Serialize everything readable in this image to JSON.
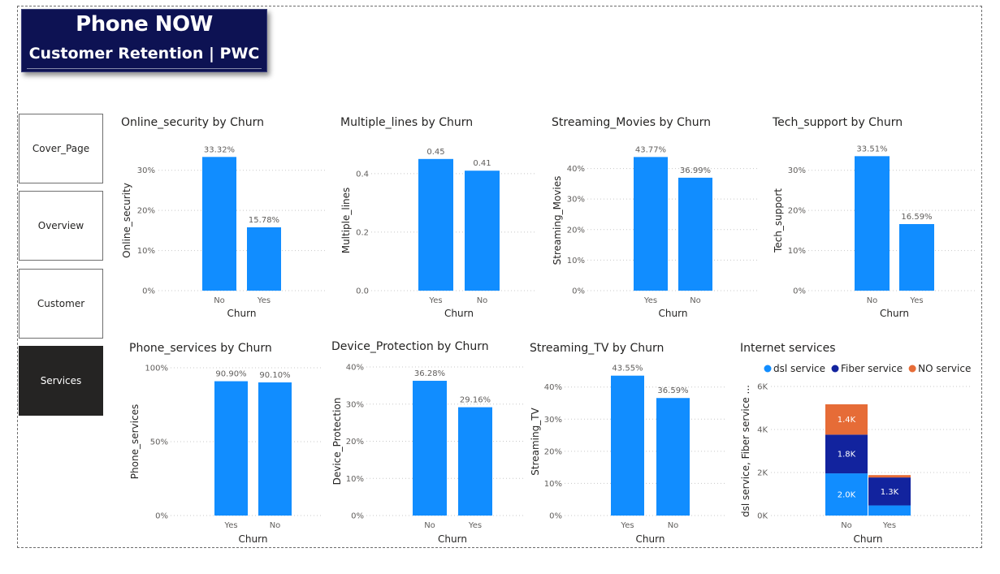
{
  "header": {
    "title": "Phone NOW",
    "subtitle": "Customer Retention | PWC"
  },
  "nav": [
    {
      "label": "Cover_Page",
      "active": false
    },
    {
      "label": "Overview",
      "active": false
    },
    {
      "label": "Customer",
      "active": false
    },
    {
      "label": "Services",
      "active": true
    }
  ],
  "colors": {
    "bar": "#118dff",
    "dsl": "#118dff",
    "fiber": "#12239e",
    "none": "#e66c37",
    "title_bg": "#0d1253",
    "nav_active": "#252423"
  },
  "chart_data": [
    {
      "id": "online-security",
      "type": "bar",
      "title": "Online_security by Churn",
      "xlabel": "Churn",
      "ylabel": "Online_security",
      "categories": [
        "No",
        "Yes"
      ],
      "values": [
        33.32,
        15.78
      ],
      "data_labels": [
        "33.32%",
        "15.78%"
      ],
      "ylim": [
        0,
        35
      ],
      "yticks": [
        0,
        10,
        20,
        30
      ],
      "ytick_labels": [
        "0%",
        "10%",
        "20%",
        "30%"
      ],
      "grid": true
    },
    {
      "id": "multiple-lines",
      "type": "bar",
      "title": "Multiple_lines by Churn",
      "xlabel": "Churn",
      "ylabel": "Multiple_lines",
      "categories": [
        "Yes",
        "No"
      ],
      "values": [
        0.45,
        0.41
      ],
      "data_labels": [
        "0.45",
        "0.41"
      ],
      "ylim": [
        0,
        0.48
      ],
      "yticks": [
        0,
        0.2,
        0.4
      ],
      "ytick_labels": [
        "0.0",
        "0.2",
        "0.4"
      ],
      "grid": true
    },
    {
      "id": "streaming-movies",
      "type": "bar",
      "title": "Streaming_Movies by Churn",
      "xlabel": "Churn",
      "ylabel": "Streaming_Movies",
      "categories": [
        "Yes",
        "No"
      ],
      "values": [
        43.77,
        36.99
      ],
      "data_labels": [
        "43.77%",
        "36.99%"
      ],
      "ylim": [
        0,
        46
      ],
      "yticks": [
        0,
        10,
        20,
        30,
        40
      ],
      "ytick_labels": [
        "0%",
        "10%",
        "20%",
        "30%",
        "40%"
      ],
      "grid": true
    },
    {
      "id": "tech-support",
      "type": "bar",
      "title": "Tech_support by Churn",
      "xlabel": "Churn",
      "ylabel": "Tech_support",
      "categories": [
        "No",
        "Yes"
      ],
      "values": [
        33.51,
        16.59
      ],
      "data_labels": [
        "33.51%",
        "16.59%"
      ],
      "ylim": [
        0,
        35
      ],
      "yticks": [
        0,
        10,
        20,
        30
      ],
      "ytick_labels": [
        "0%",
        "10%",
        "20%",
        "30%"
      ],
      "grid": true
    },
    {
      "id": "phone-services",
      "type": "bar",
      "title": "Phone_services by Churn",
      "xlabel": "Churn",
      "ylabel": "Phone_services",
      "categories": [
        "Yes",
        "No"
      ],
      "values": [
        90.9,
        90.1
      ],
      "data_labels": [
        "90.90%",
        "90.10%"
      ],
      "ylim": [
        0,
        100
      ],
      "yticks": [
        0,
        50,
        100
      ],
      "ytick_labels": [
        "0%",
        "50%",
        "100%"
      ],
      "grid": true
    },
    {
      "id": "device-protection",
      "type": "bar",
      "title": "Device_Protection by Churn",
      "xlabel": "Churn",
      "ylabel": "Device_Protection",
      "categories": [
        "No",
        "Yes"
      ],
      "values": [
        36.28,
        29.16
      ],
      "data_labels": [
        "36.28%",
        "29.16%"
      ],
      "ylim": [
        0,
        40
      ],
      "yticks": [
        0,
        10,
        20,
        30,
        40
      ],
      "ytick_labels": [
        "0%",
        "10%",
        "20%",
        "30%",
        "40%"
      ],
      "grid": true
    },
    {
      "id": "streaming-tv",
      "type": "bar",
      "title": "Streaming_TV by Churn",
      "xlabel": "Churn",
      "ylabel": "Streaming_TV",
      "categories": [
        "Yes",
        "No"
      ],
      "values": [
        43.55,
        36.59
      ],
      "data_labels": [
        "43.55%",
        "36.59%"
      ],
      "ylim": [
        0,
        46
      ],
      "yticks": [
        0,
        10,
        20,
        30,
        40
      ],
      "ytick_labels": [
        "0%",
        "10%",
        "20%",
        "30%",
        "40%"
      ],
      "grid": true
    },
    {
      "id": "internet-services",
      "type": "stacked_bar",
      "title": "Internet services",
      "xlabel": "Churn",
      "ylabel": "dsl service, Fiber service ...",
      "categories": [
        "No",
        "Yes"
      ],
      "series": [
        {
          "name": "dsl service",
          "values": [
            1960,
            470
          ],
          "labels": [
            "2.0K",
            ""
          ]
        },
        {
          "name": "Fiber service",
          "values": [
            1800,
            1300
          ],
          "labels": [
            "1.8K",
            "1.3K"
          ]
        },
        {
          "name": "NO service",
          "values": [
            1410,
            110
          ],
          "labels": [
            "1.4K",
            ""
          ]
        }
      ],
      "legend": "top-left",
      "ylim": [
        0,
        6000
      ],
      "yticks": [
        0,
        2000,
        4000,
        6000
      ],
      "ytick_labels": [
        "0K",
        "2K",
        "4K",
        "6K"
      ],
      "grid": true
    }
  ]
}
